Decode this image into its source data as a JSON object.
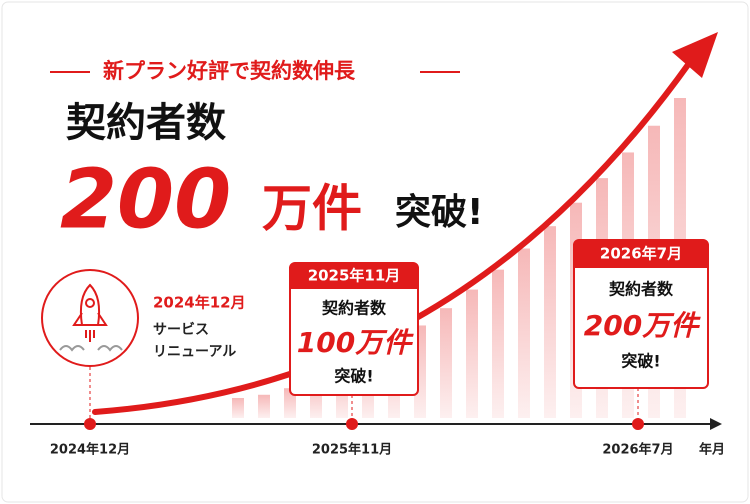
{
  "headline": "新プラン好評で契約数伸長",
  "title": {
    "label": "契約者数",
    "number": "200",
    "unit": "万件",
    "suffix": "突破!"
  },
  "milestones": [
    {
      "date": "2024年12月",
      "lines": [
        "サービス",
        "リニューアル"
      ]
    },
    {
      "date": "2025年11月",
      "lines": [
        "契約者数",
        "100万件",
        "突破!"
      ]
    },
    {
      "date": "2026年7月",
      "lines": [
        "契約者数",
        "200万件",
        "突破!"
      ]
    }
  ],
  "axis": {
    "labels": [
      "2024年12月",
      "2025年11月",
      "2026年7月"
    ],
    "unit": "年月"
  }
}
